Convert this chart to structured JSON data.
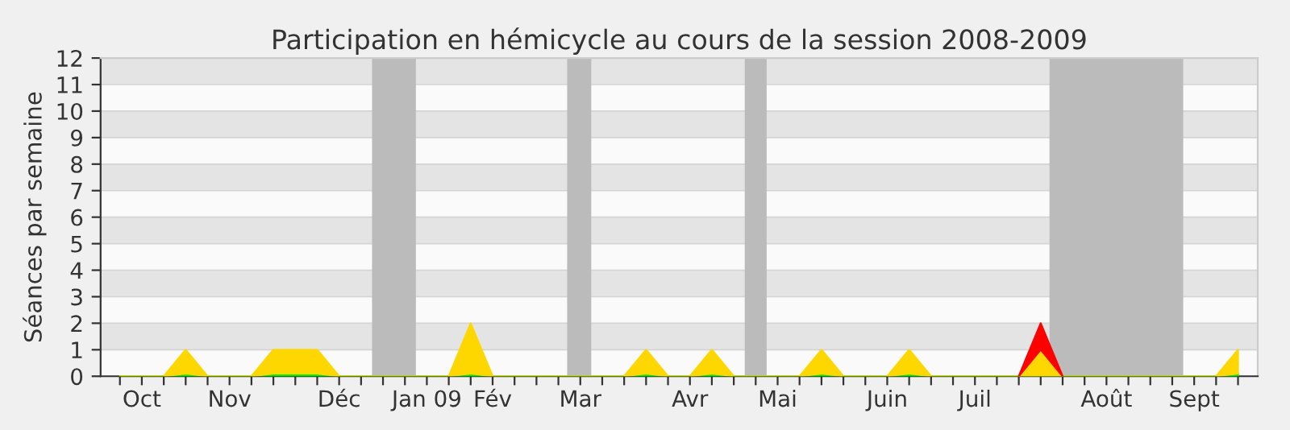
{
  "chart_data": {
    "type": "area",
    "stacked": true,
    "title": "Participation en hémicycle au cours de la session 2008-2009",
    "ylabel": "Séances par semaine",
    "categories": [
      null,
      "Oct",
      null,
      null,
      null,
      "Nov",
      null,
      null,
      null,
      null,
      "Déc",
      null,
      null,
      null,
      "Jan 09",
      null,
      null,
      "Fév",
      null,
      null,
      null,
      "Mar",
      null,
      null,
      null,
      null,
      "Avr",
      null,
      null,
      null,
      "Mai",
      null,
      null,
      null,
      null,
      "Juin",
      null,
      null,
      null,
      "Juil",
      null,
      null,
      null,
      null,
      null,
      "Août",
      null,
      null,
      null,
      "Sept",
      null,
      null
    ],
    "series": [
      {
        "color": "#00ee00",
        "values": [
          0,
          0,
          0,
          0.1,
          0,
          0,
          0,
          0.1,
          0.1,
          0.1,
          0,
          0,
          0,
          0,
          0,
          0,
          0.1,
          0,
          0,
          0,
          0,
          0,
          0,
          0,
          0.1,
          0,
          0,
          0.1,
          0,
          0,
          0,
          0,
          0.1,
          0,
          0,
          0,
          0.1,
          0,
          0,
          0,
          0,
          0,
          0,
          0,
          0,
          0,
          0,
          0,
          0,
          0,
          0,
          0.1
        ]
      },
      {
        "color": "#ffd700",
        "values": [
          0,
          0,
          0,
          0.9,
          0,
          0,
          0,
          0.9,
          0.9,
          0.9,
          0,
          0,
          0,
          0,
          0,
          0,
          1.9,
          0,
          0,
          0,
          0,
          0,
          0,
          0,
          0.9,
          0,
          0,
          0.9,
          0,
          0,
          0,
          0,
          0.9,
          0,
          0,
          0,
          0.9,
          0,
          0,
          0,
          0,
          0,
          1,
          0,
          0,
          0,
          0,
          0,
          0,
          0,
          0,
          0.9
        ]
      },
      {
        "color": "#ff0000",
        "values": [
          null,
          null,
          null,
          null,
          null,
          null,
          null,
          null,
          null,
          null,
          null,
          null,
          null,
          null,
          null,
          null,
          null,
          null,
          null,
          null,
          null,
          null,
          null,
          null,
          null,
          null,
          null,
          null,
          null,
          null,
          null,
          null,
          null,
          null,
          null,
          null,
          null,
          null,
          null,
          null,
          null,
          0,
          1,
          0,
          null,
          null,
          null,
          null,
          null,
          null,
          null,
          null
        ]
      }
    ],
    "ylim": [
      0,
      12
    ],
    "yticks": [
      0,
      1,
      2,
      3,
      4,
      5,
      6,
      7,
      8,
      9,
      10,
      11,
      12
    ],
    "grid": "y",
    "legend": false
  }
}
